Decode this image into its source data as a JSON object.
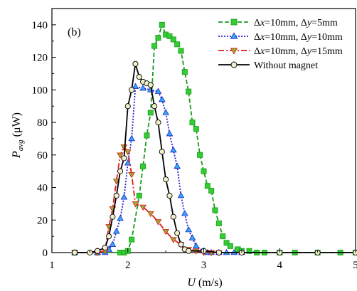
{
  "chart_data": {
    "type": "line",
    "panel_label": "(b)",
    "xlabel": {
      "main": "U",
      "unit": " (m/s)"
    },
    "ylabel": {
      "main": "P",
      "sub": "avg",
      "unit": " (μW)"
    },
    "xlim": [
      1,
      5
    ],
    "ylim": [
      0,
      150
    ],
    "xticks": [
      "1",
      "2",
      "3",
      "4",
      "5"
    ],
    "yticks": [
      "0",
      "20",
      "40",
      "60",
      "80",
      "100",
      "120",
      "140"
    ],
    "xtick_values": [
      1,
      2,
      3,
      4,
      5
    ],
    "ytick_values": [
      0,
      20,
      40,
      60,
      80,
      100,
      120,
      140
    ],
    "grid": false,
    "legend_position": "top-right",
    "series": [
      {
        "name": "Δx=10mm, Δy=5mm",
        "legend": {
          "a": "Δ",
          "b": "x",
          "c": "=10mm, Δ",
          "d": "y",
          "e": "=5mm"
        },
        "color": "#1a9a1a",
        "marker": "square",
        "dash": "6,3",
        "x": [
          1.3,
          1.6,
          1.9,
          1.95,
          2.0,
          2.05,
          2.15,
          2.2,
          2.25,
          2.3,
          2.35,
          2.4,
          2.45,
          2.5,
          2.55,
          2.6,
          2.65,
          2.7,
          2.75,
          2.8,
          2.85,
          2.9,
          2.95,
          3.0,
          3.05,
          3.1,
          3.15,
          3.2,
          3.25,
          3.3,
          3.35,
          3.45,
          3.5,
          3.6,
          3.7,
          3.8,
          4.0,
          4.2,
          4.5,
          4.8,
          5.0
        ],
        "y": [
          0,
          0,
          0,
          0,
          1,
          8,
          35,
          53,
          72,
          86,
          127,
          132,
          140,
          134,
          133,
          131,
          128,
          124,
          111,
          99,
          80,
          76,
          60,
          50,
          41,
          38,
          26,
          18,
          10,
          6,
          4,
          2,
          1,
          1,
          0,
          0,
          0,
          0,
          0,
          0,
          0
        ]
      },
      {
        "name": "Δx=10mm, Δy=10mm",
        "legend": {
          "a": "Δ",
          "b": "x",
          "c": "=10mm, Δ",
          "d": "y",
          "e": "=10mm"
        },
        "color": "#2222cc",
        "marker": "triangle-up",
        "dash": "2,2",
        "x": [
          1.3,
          1.6,
          1.7,
          1.75,
          1.8,
          1.85,
          1.9,
          1.95,
          2.0,
          2.05,
          2.1,
          2.2,
          2.3,
          2.4,
          2.45,
          2.5,
          2.55,
          2.6,
          2.65,
          2.7,
          2.75,
          2.8,
          2.85,
          2.9,
          3.0,
          3.05,
          3.1,
          3.2,
          3.3,
          3.4,
          3.5
        ],
        "y": [
          0,
          0,
          0,
          2,
          5,
          13,
          21,
          34,
          55,
          70,
          102,
          101,
          100,
          99,
          94,
          86,
          73,
          63,
          53,
          35,
          24,
          14,
          9,
          4,
          1,
          0,
          0,
          0,
          0,
          0,
          0
        ]
      },
      {
        "name": "Δx=10mm, Δy=15mm",
        "legend": {
          "a": "Δ",
          "b": "x",
          "c": "=10mm, Δ",
          "d": "y",
          "e": "=15mm"
        },
        "color": "#dd1a1a",
        "marker": "triangle-down",
        "dash": "8,3,2,3",
        "x": [
          1.3,
          1.6,
          1.7,
          1.75,
          1.8,
          1.85,
          1.9,
          1.95,
          2.0,
          2.05,
          2.1,
          2.2,
          2.3,
          2.4,
          2.5,
          2.6,
          2.7,
          2.8,
          2.9,
          3.0,
          3.1,
          3.2
        ],
        "y": [
          0,
          0,
          1,
          16,
          27,
          44,
          60,
          65,
          62,
          48,
          30,
          28,
          24,
          19,
          13,
          8,
          5,
          2,
          1,
          0,
          0,
          0
        ]
      },
      {
        "name": "Without magnet",
        "legend": {
          "a": "Without magnet",
          "b": "",
          "c": "",
          "d": "",
          "e": ""
        },
        "color": "#000000",
        "marker": "circle",
        "dash": "",
        "x": [
          1.3,
          1.5,
          1.6,
          1.7,
          1.75,
          1.8,
          1.85,
          1.9,
          1.95,
          2.0,
          2.05,
          2.1,
          2.15,
          2.2,
          2.25,
          2.3,
          2.35,
          2.4,
          2.45,
          2.5,
          2.55,
          2.6,
          2.65,
          2.7,
          2.75,
          2.8,
          3.0,
          3.2,
          3.5,
          4.0,
          4.5,
          5.0
        ],
        "y": [
          0,
          0,
          1,
          3,
          10,
          22,
          35,
          50,
          58,
          90,
          100,
          116,
          108,
          105,
          104,
          103,
          90,
          80,
          62,
          45,
          35,
          22,
          12,
          5,
          2,
          1,
          1,
          0,
          0,
          0,
          0,
          0
        ]
      }
    ]
  }
}
